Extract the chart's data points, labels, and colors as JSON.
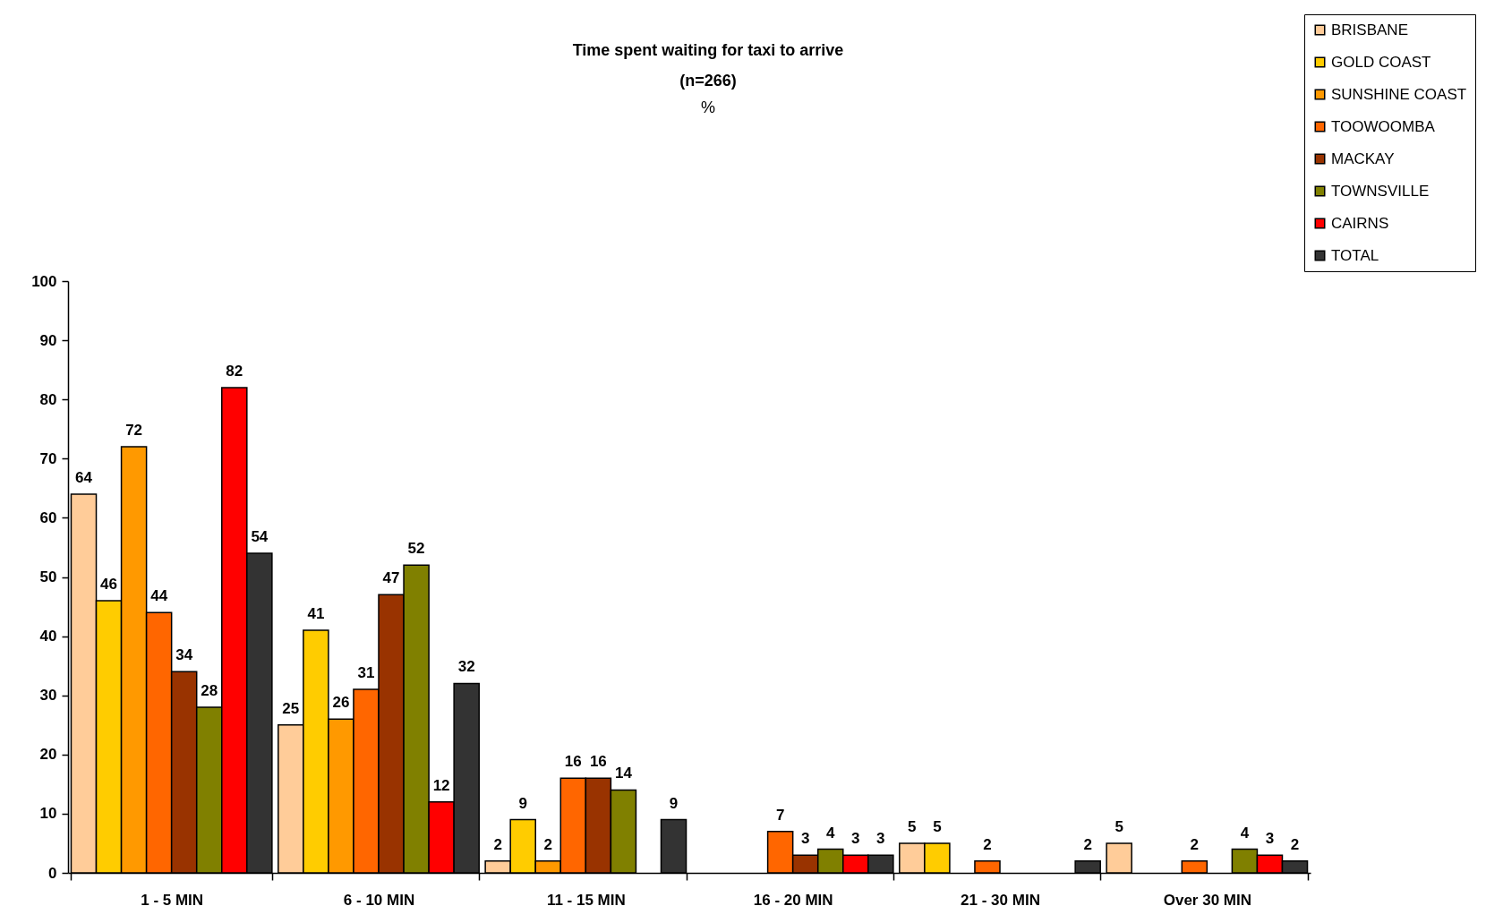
{
  "chart_data": {
    "type": "bar",
    "title": "Time spent waiting for taxi to arrive\n(n=266)",
    "subtitle": "%",
    "categories": [
      "1 - 5 MIN",
      "6 - 10 MIN",
      "11 - 15 MIN",
      "16 - 20 MIN",
      "21 - 30 MIN",
      "Over 30 MIN"
    ],
    "series": [
      {
        "name": "BRISBANE",
        "color": "#ffcc99",
        "values": [
          64,
          25,
          2,
          null,
          5,
          5
        ]
      },
      {
        "name": "GOLD COAST",
        "color": "#ffcc00",
        "values": [
          46,
          41,
          9,
          null,
          5,
          null
        ]
      },
      {
        "name": "SUNSHINE COAST",
        "color": "#ff9900",
        "values": [
          72,
          26,
          2,
          null,
          null,
          null
        ]
      },
      {
        "name": "TOOWOOMBA",
        "color": "#ff6600",
        "values": [
          44,
          31,
          16,
          7,
          2,
          2
        ]
      },
      {
        "name": "MACKAY",
        "color": "#993300",
        "values": [
          34,
          47,
          16,
          3,
          null,
          null
        ]
      },
      {
        "name": "TOWNSVILLE",
        "color": "#808000",
        "values": [
          28,
          52,
          14,
          4,
          null,
          4
        ]
      },
      {
        "name": "CAIRNS",
        "color": "#ff0000",
        "values": [
          82,
          12,
          null,
          3,
          null,
          3
        ]
      },
      {
        "name": "TOTAL",
        "color": "#333333",
        "values": [
          54,
          32,
          9,
          3,
          2,
          2
        ]
      }
    ],
    "ylim": [
      0,
      100
    ],
    "yticks": [
      0,
      10,
      20,
      30,
      40,
      50,
      60,
      70,
      80,
      90,
      100
    ],
    "data_labels": true,
    "grid": false,
    "legend": "top right"
  }
}
